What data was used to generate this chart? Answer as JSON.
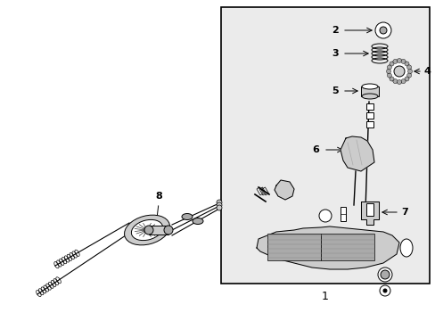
{
  "bg_color": "#ffffff",
  "box_bg": "#ebebeb",
  "black": "#000000",
  "gray1": "#cccccc",
  "gray2": "#aaaaaa",
  "gray3": "#888888",
  "font_size": 8,
  "label_1": "1",
  "label_2": "2",
  "label_3": "3",
  "label_4": "4",
  "label_5": "5",
  "label_6": "6",
  "label_7": "7",
  "label_8": "8"
}
